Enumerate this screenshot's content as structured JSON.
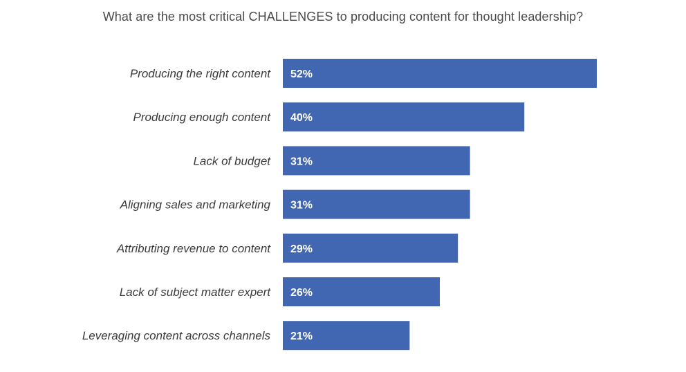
{
  "chart_data": {
    "type": "bar",
    "orientation": "horizontal",
    "title": "What are the most critical CHALLENGES to producing content for thought leadership?",
    "categories": [
      "Producing the right content",
      "Producing enough content",
      "Lack of budget",
      "Aligning sales and marketing",
      "Attributing revenue to content",
      "Lack of subject matter expert",
      "Leveraging content across channels"
    ],
    "values": [
      52,
      40,
      31,
      31,
      29,
      26,
      21
    ],
    "value_labels": [
      "52%",
      "40%",
      "31%",
      "31%",
      "29%",
      "26%",
      "21%"
    ],
    "unit": "%",
    "xlim": [
      0,
      60
    ],
    "grid": false,
    "legend": "none",
    "bar_color": "#4267b2"
  }
}
